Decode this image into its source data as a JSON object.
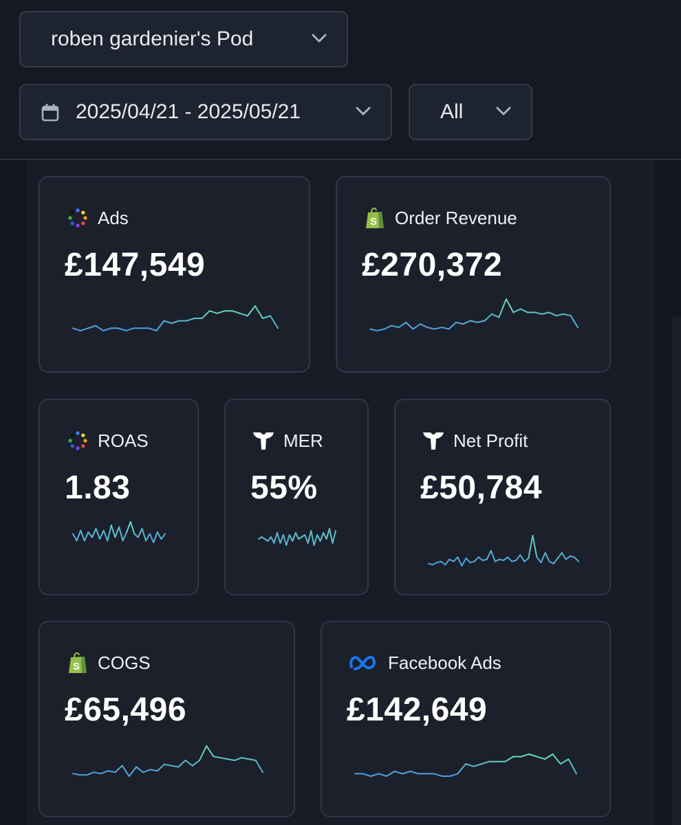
{
  "header": {
    "pod_selector": "roben gardenier's Pod",
    "date_range": "2025/04/21 - 2025/05/21",
    "filter": "All"
  },
  "colors": {
    "background": "#13161e",
    "card": "#1c202b",
    "card_border": "#30374a",
    "spark_blue": "#4a9be6",
    "spark_green": "#6fe3b0",
    "shopify_green": "#95bf47",
    "meta_blue": "#1877f2"
  },
  "metrics": [
    {
      "label": "Ads",
      "value": "£147,549",
      "icon": "ads-dots-icon",
      "spark": [
        10,
        9,
        10,
        11,
        9,
        10,
        10,
        9,
        10,
        10,
        10,
        9,
        13,
        12,
        13,
        13,
        14,
        14,
        17,
        16,
        17,
        17,
        16,
        15,
        19,
        14,
        15,
        10
      ]
    },
    {
      "label": "Order Revenue",
      "value": "£270,372",
      "icon": "shopify-bag-icon",
      "spark": [
        10,
        9,
        10,
        12,
        11,
        14,
        10,
        13,
        11,
        10,
        11,
        10,
        14,
        13,
        15,
        14,
        15,
        19,
        17,
        28,
        20,
        22,
        20,
        20,
        19,
        20,
        18,
        19,
        18,
        11
      ]
    },
    {
      "label": "ROAS",
      "value": "1.83",
      "icon": "ads-dots-icon",
      "spark": [
        14,
        10,
        16,
        10,
        15,
        12,
        17,
        11,
        16,
        10,
        19,
        12,
        18,
        10,
        15,
        21,
        14,
        12,
        17,
        10,
        14,
        9,
        15,
        11,
        14
      ]
    },
    {
      "label": "MER",
      "value": "55%",
      "icon": "triple-whale-icon",
      "spark": [
        12,
        13,
        12,
        11,
        13,
        10,
        15,
        10,
        14,
        9,
        14,
        11,
        15,
        12,
        13,
        14,
        10,
        16,
        9,
        14,
        11,
        15,
        12,
        17,
        10,
        16
      ]
    },
    {
      "label": "Net Profit",
      "value": "£50,784",
      "icon": "triple-whale-icon",
      "spark": [
        10,
        9,
        11,
        12,
        9,
        14,
        12,
        16,
        8,
        15,
        11,
        12,
        16,
        13,
        14,
        22,
        12,
        14,
        13,
        16,
        12,
        13,
        18,
        12,
        15,
        36,
        16,
        11,
        20,
        12,
        10,
        15,
        20,
        14,
        17,
        16,
        12
      ]
    },
    {
      "label": "COGS",
      "value": "£65,496",
      "icon": "shopify-bag-icon",
      "spark": [
        10,
        9,
        9,
        11,
        10,
        12,
        11,
        16,
        8,
        15,
        11,
        13,
        12,
        17,
        16,
        15,
        20,
        16,
        20,
        31,
        23,
        22,
        21,
        20,
        22,
        21,
        20,
        11
      ]
    },
    {
      "label": "Facebook Ads",
      "value": "£142,649",
      "icon": "meta-logo-icon",
      "spark": [
        10,
        10,
        9,
        10,
        9,
        11,
        10,
        11,
        10,
        10,
        10,
        9,
        9,
        10,
        14,
        13,
        14,
        15,
        15,
        15,
        17,
        17,
        18,
        17,
        16,
        18,
        14,
        16,
        10
      ]
    }
  ]
}
